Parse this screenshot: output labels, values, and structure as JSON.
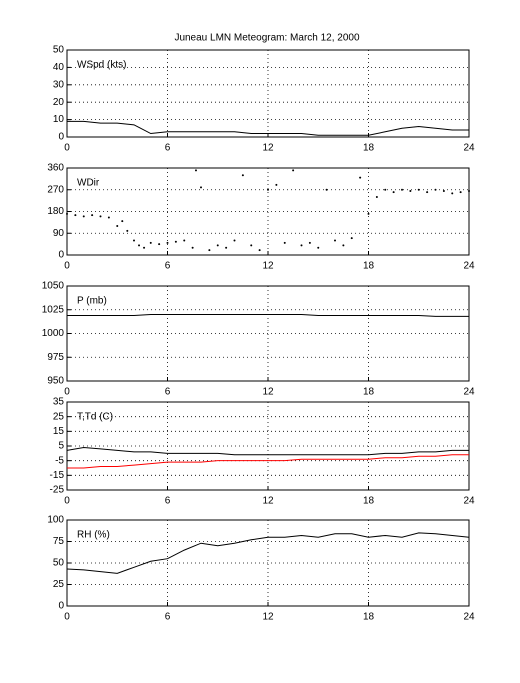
{
  "title": "Juneau LMN Meteogram:      March 12, 2000",
  "chart_data": [
    {
      "type": "line",
      "ylabel": "WSpd (kts)",
      "x": [
        0,
        1,
        2,
        3,
        4,
        5,
        6,
        7,
        8,
        9,
        10,
        11,
        12,
        13,
        14,
        15,
        16,
        17,
        18,
        19,
        20,
        21,
        22,
        23,
        24
      ],
      "series": [
        {
          "color": "#000000",
          "values": [
            9,
            9,
            8,
            8,
            7,
            2,
            3,
            3,
            3,
            3,
            3,
            2,
            2,
            2,
            2,
            1,
            1,
            1,
            1,
            3,
            5,
            6,
            5,
            4,
            4
          ]
        }
      ],
      "xlim": [
        0,
        24
      ],
      "xticks": [
        0,
        6,
        12,
        18,
        24
      ],
      "ylim": [
        0,
        50
      ],
      "yticks": [
        0,
        10,
        20,
        30,
        40,
        50
      ],
      "grid": true
    },
    {
      "type": "scatter",
      "ylabel": "WDir",
      "x": [
        0,
        0.5,
        1,
        1.5,
        2,
        2.5,
        3,
        3.3,
        3.6,
        4,
        4.3,
        4.6,
        5,
        5.5,
        6,
        6.5,
        7,
        7.5,
        7.7,
        8,
        8.5,
        9,
        9.5,
        10,
        10.5,
        11,
        11.5,
        12,
        12.5,
        13,
        13.5,
        14,
        14.5,
        15,
        15.5,
        16,
        16.5,
        17,
        17.5,
        18,
        18.5,
        19,
        19.5,
        20,
        20.5,
        21,
        21.5,
        22,
        22.5,
        23,
        23.5,
        24
      ],
      "values": [
        170,
        165,
        160,
        165,
        160,
        155,
        120,
        140,
        100,
        60,
        40,
        30,
        50,
        45,
        50,
        55,
        60,
        30,
        350,
        280,
        20,
        40,
        30,
        60,
        330,
        40,
        20,
        270,
        290,
        50,
        350,
        40,
        50,
        30,
        270,
        60,
        40,
        70,
        320,
        170,
        240,
        270,
        260,
        270,
        265,
        270,
        260,
        270,
        265,
        255,
        260,
        265
      ],
      "color": "#000000",
      "xlim": [
        0,
        24
      ],
      "xticks": [
        0,
        6,
        12,
        18,
        24
      ],
      "ylim": [
        0,
        360
      ],
      "yticks": [
        0,
        90,
        180,
        270,
        360
      ],
      "grid": true
    },
    {
      "type": "line",
      "ylabel": "P (mb)",
      "x": [
        0,
        1,
        2,
        3,
        4,
        5,
        6,
        7,
        8,
        9,
        10,
        11,
        12,
        13,
        14,
        15,
        16,
        17,
        18,
        19,
        20,
        21,
        22,
        23,
        24
      ],
      "series": [
        {
          "color": "#000000",
          "values": [
            1019,
            1019,
            1019,
            1019,
            1019,
            1020,
            1020,
            1020,
            1020,
            1020,
            1020,
            1020,
            1020,
            1020,
            1020,
            1019,
            1019,
            1019,
            1019,
            1019,
            1019,
            1019,
            1018,
            1018,
            1018
          ]
        }
      ],
      "xlim": [
        0,
        24
      ],
      "xticks": [
        0,
        6,
        12,
        18,
        24
      ],
      "ylim": [
        950,
        1050
      ],
      "yticks": [
        950,
        975,
        1000,
        1025,
        1050
      ],
      "grid": true
    },
    {
      "type": "line",
      "ylabel": "T,Td (C)",
      "x": [
        0,
        1,
        2,
        3,
        4,
        5,
        6,
        7,
        8,
        9,
        10,
        11,
        12,
        13,
        14,
        15,
        16,
        17,
        18,
        19,
        20,
        21,
        22,
        23,
        24
      ],
      "series": [
        {
          "color": "#000000",
          "values": [
            2,
            4,
            3,
            2,
            1,
            1,
            0,
            0,
            0,
            0,
            -1,
            -1,
            -1,
            -1,
            -1,
            -1,
            -1,
            -1,
            -1,
            0,
            0,
            1,
            1,
            2,
            2
          ]
        },
        {
          "color": "#ff0000",
          "values": [
            -10,
            -10,
            -9,
            -9,
            -8,
            -7,
            -6,
            -6,
            -6,
            -5,
            -5,
            -5,
            -5,
            -5,
            -4,
            -4,
            -4,
            -4,
            -4,
            -3,
            -3,
            -2,
            -2,
            -1,
            -1
          ]
        }
      ],
      "xlim": [
        0,
        24
      ],
      "xticks": [
        0,
        6,
        12,
        18,
        24
      ],
      "ylim": [
        -25,
        35
      ],
      "yticks": [
        -25,
        -15,
        -5,
        5,
        15,
        25,
        35
      ],
      "grid": true
    },
    {
      "type": "line",
      "ylabel": "RH (%)",
      "x": [
        0,
        1,
        2,
        3,
        4,
        5,
        6,
        7,
        8,
        9,
        10,
        11,
        12,
        13,
        14,
        15,
        16,
        17,
        18,
        19,
        20,
        21,
        22,
        23,
        24
      ],
      "series": [
        {
          "color": "#000000",
          "values": [
            43,
            42,
            40,
            38,
            45,
            52,
            55,
            65,
            73,
            70,
            73,
            77,
            80,
            80,
            82,
            80,
            84,
            84,
            80,
            82,
            80,
            85,
            84,
            82,
            80
          ]
        }
      ],
      "xlim": [
        0,
        24
      ],
      "xticks": [
        0,
        6,
        12,
        18,
        24
      ],
      "ylim": [
        0,
        100
      ],
      "yticks": [
        0,
        25,
        50,
        75,
        100
      ],
      "grid": true
    }
  ]
}
